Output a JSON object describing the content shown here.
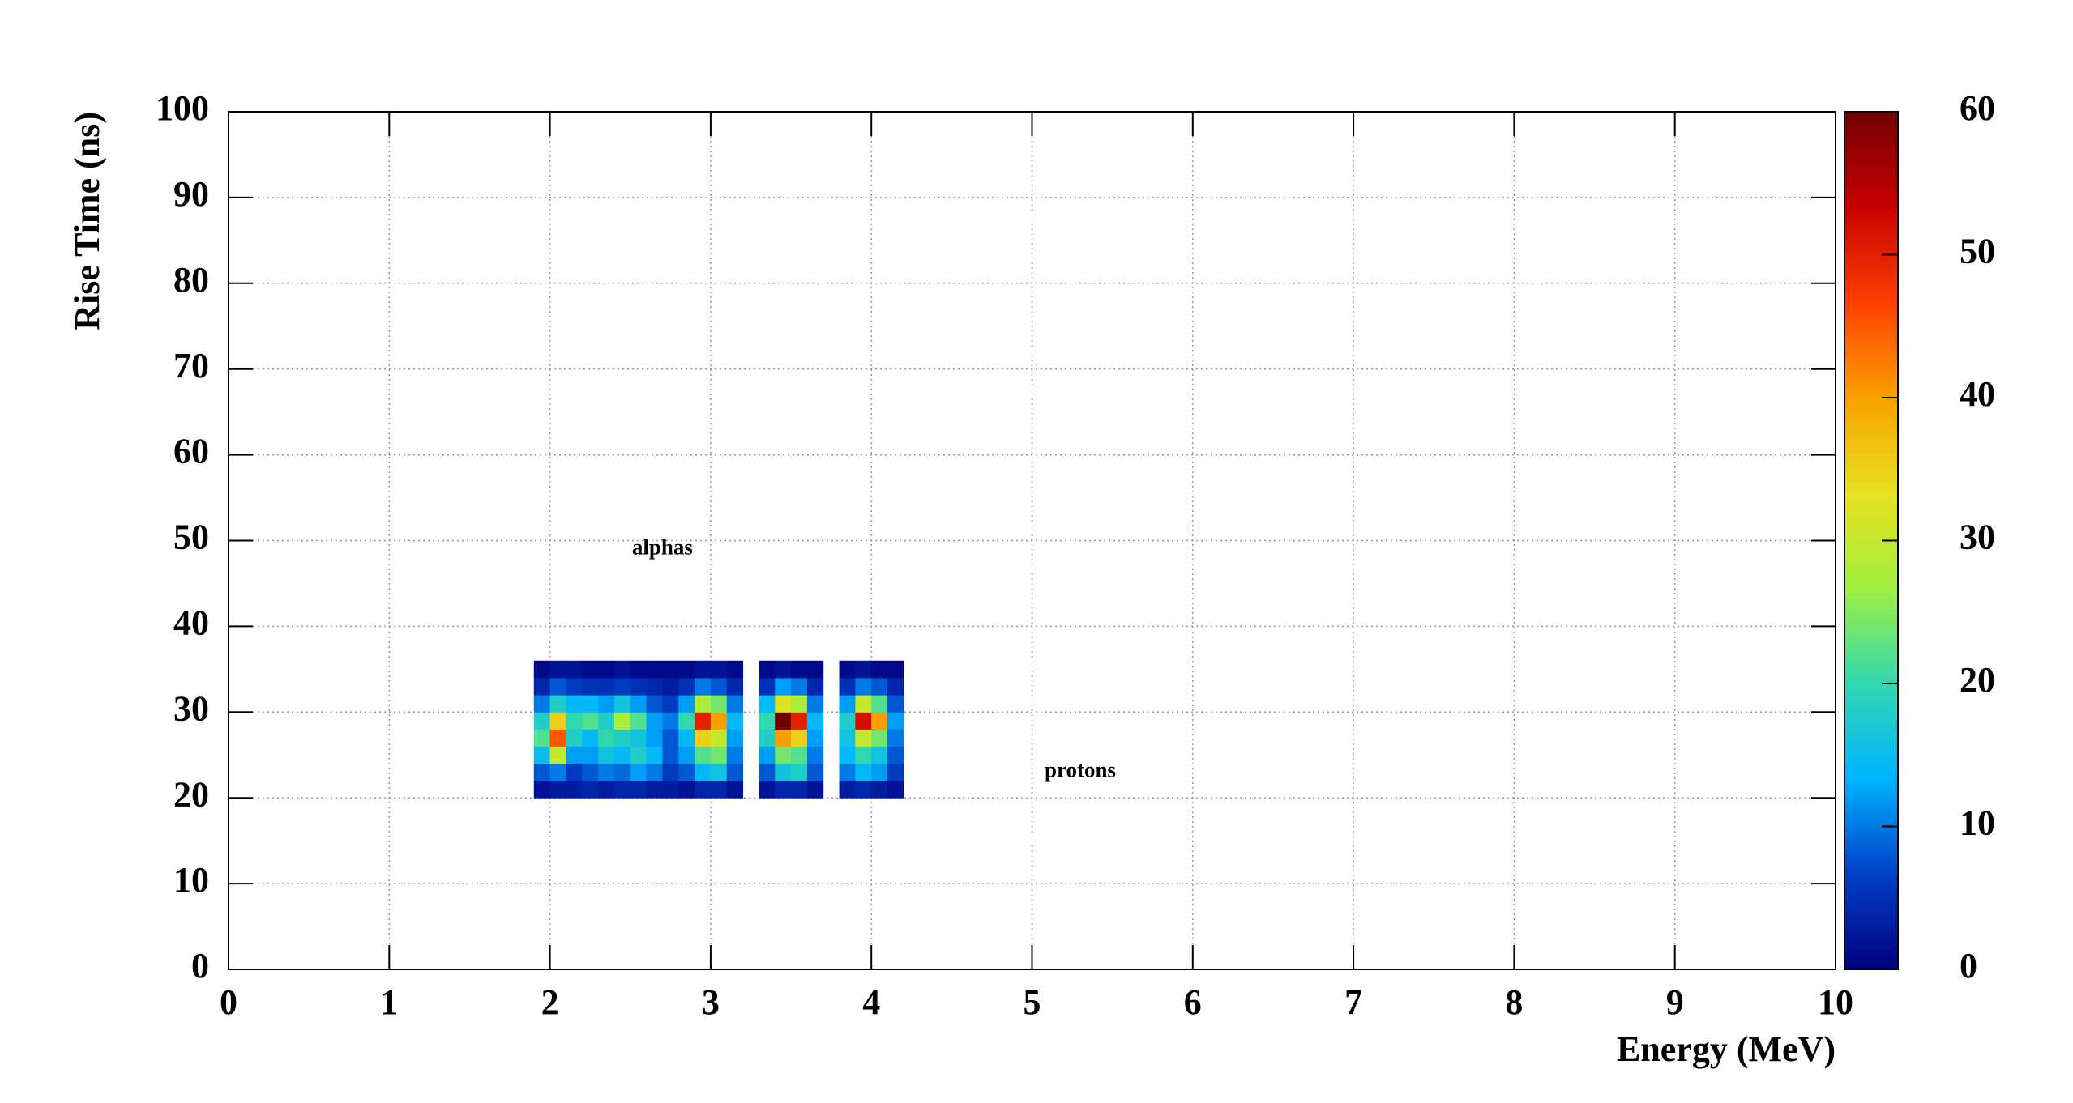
{
  "chart_data": {
    "type": "heatmap",
    "x_label": "Energy (MeV)",
    "y_label": "Rise Time (ns)",
    "xlim": [
      0,
      10
    ],
    "xticks": [
      0,
      1,
      2,
      3,
      4,
      5,
      6,
      7,
      8,
      9,
      10
    ],
    "ylim": [
      0,
      100
    ],
    "yticks": [
      0,
      10,
      20,
      30,
      40,
      50,
      60,
      70,
      80,
      90,
      100
    ],
    "zlim": [
      0,
      60
    ],
    "zticks": [
      0,
      10,
      20,
      30,
      40,
      50,
      60
    ],
    "grid": true,
    "colorscale": [
      "#000080",
      "#0040c8",
      "#00b4ff",
      "#30d8b0",
      "#a0f040",
      "#e8e020",
      "#f8a000",
      "#ff4000",
      "#c80000",
      "#700000"
    ],
    "x": [
      1.95,
      2.05,
      2.15,
      2.25,
      2.35,
      2.45,
      2.55,
      2.65,
      2.75,
      2.85,
      2.95,
      3.05,
      3.15,
      3.25,
      3.35,
      3.45,
      3.55,
      3.65,
      3.75,
      3.85,
      3.95,
      4.05,
      4.15
    ],
    "y": [
      21,
      23,
      25,
      27,
      29,
      31,
      33,
      35
    ],
    "z": [
      [
        2,
        3,
        3,
        4,
        3,
        4,
        4,
        3,
        3,
        2,
        4,
        4,
        2,
        null,
        2,
        4,
        4,
        2,
        null,
        3,
        4,
        3,
        2
      ],
      [
        8,
        10,
        6,
        8,
        10,
        9,
        12,
        10,
        6,
        8,
        14,
        16,
        8,
        null,
        8,
        16,
        18,
        8,
        null,
        10,
        14,
        12,
        6
      ],
      [
        15,
        30,
        12,
        12,
        16,
        14,
        18,
        14,
        8,
        12,
        22,
        24,
        10,
        null,
        12,
        24,
        22,
        10,
        null,
        14,
        20,
        16,
        8
      ],
      [
        22,
        45,
        18,
        14,
        20,
        18,
        16,
        12,
        8,
        14,
        35,
        30,
        12,
        null,
        18,
        40,
        35,
        12,
        null,
        16,
        30,
        24,
        10
      ],
      [
        18,
        35,
        20,
        22,
        18,
        28,
        22,
        12,
        10,
        20,
        50,
        40,
        14,
        null,
        20,
        60,
        50,
        14,
        null,
        18,
        52,
        40,
        12
      ],
      [
        10,
        18,
        14,
        14,
        12,
        16,
        12,
        8,
        6,
        12,
        28,
        24,
        10,
        null,
        14,
        32,
        28,
        10,
        null,
        12,
        30,
        22,
        8
      ],
      [
        4,
        8,
        6,
        5,
        5,
        6,
        5,
        4,
        3,
        5,
        10,
        8,
        4,
        null,
        5,
        12,
        10,
        4,
        null,
        5,
        10,
        8,
        4
      ],
      [
        1,
        2,
        2,
        1,
        1,
        2,
        1,
        1,
        1,
        1,
        2,
        2,
        1,
        null,
        1,
        2,
        1,
        1,
        null,
        1,
        2,
        1,
        1
      ]
    ],
    "annotations": [
      {
        "text": "alphas",
        "x": 2.7,
        "y": 49,
        "color": "#ff0000"
      },
      {
        "text": "protons",
        "x": 5.3,
        "y": 23,
        "color": "#00ee00"
      }
    ]
  }
}
